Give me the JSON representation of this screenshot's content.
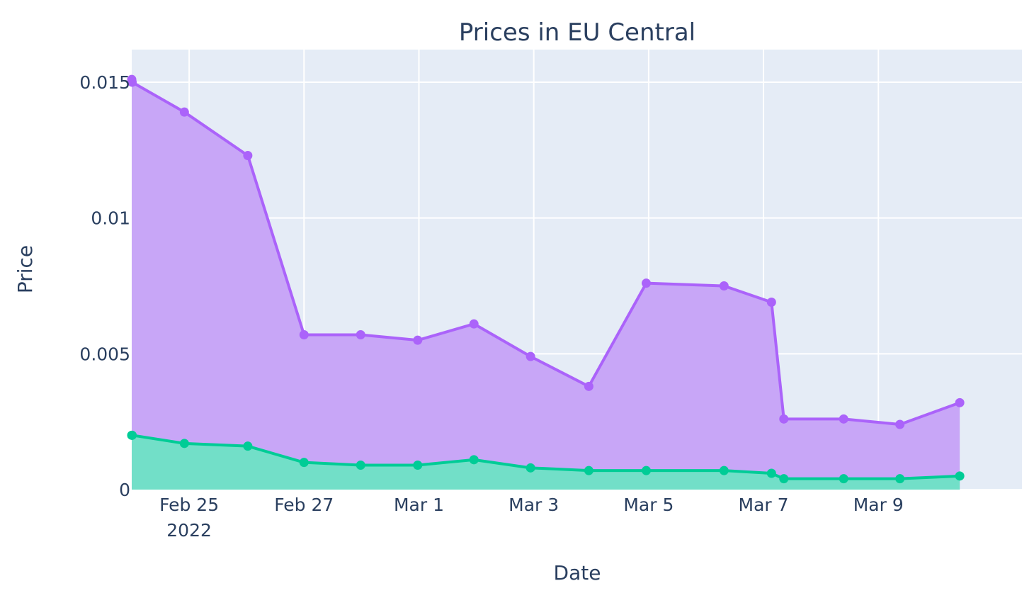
{
  "chart_data": {
    "type": "area",
    "title": "Prices in EU Central",
    "xlabel": "Date",
    "ylabel": "Price",
    "x_type": "date",
    "xlim": [
      "2022-02-24T00:00",
      "2022-03-11T12:00"
    ],
    "ylim": [
      0,
      0.0162
    ],
    "grid": true,
    "legend": "none",
    "x_ticks": [
      {
        "date": "2022-02-25",
        "label": "Feb 25",
        "sublabel": "2022"
      },
      {
        "date": "2022-02-27",
        "label": "Feb 27"
      },
      {
        "date": "2022-03-01",
        "label": "Mar 1"
      },
      {
        "date": "2022-03-03",
        "label": "Mar 3"
      },
      {
        "date": "2022-03-05",
        "label": "Mar 5"
      },
      {
        "date": "2022-03-07",
        "label": "Mar 7"
      },
      {
        "date": "2022-03-09",
        "label": "Mar 9"
      }
    ],
    "y_ticks": [
      {
        "value": 0,
        "label": "0"
      },
      {
        "value": 0.005,
        "label": "0.005"
      },
      {
        "value": 0.01,
        "label": "0.01"
      },
      {
        "value": 0.015,
        "label": "0.015"
      }
    ],
    "colors": {
      "background": "#e5ecf6",
      "grid": "#ffffff"
    },
    "series": [
      {
        "color": "#ab63fa",
        "fill": "#c8a6f7",
        "values": [
          0.0151,
          0.015,
          0.0139,
          0.0123,
          0.0057,
          0.0057,
          0.0055,
          0.0061,
          0.0049,
          0.0038,
          0.0076,
          0.0075,
          0.0069,
          0.0026,
          0.0026,
          0.0024,
          0.0032
        ]
      },
      {
        "color": "#00cc96",
        "fill": "#72dfc8",
        "values": [
          0.002,
          0.002,
          0.0017,
          0.0016,
          0.001,
          0.0009,
          0.0009,
          0.0011,
          0.0008,
          0.0007,
          0.0007,
          0.0007,
          0.0006,
          0.0004,
          0.0004,
          0.0004,
          0.0005
        ]
      }
    ],
    "x": [
      "2022-02-24T00:00",
      "2022-02-24T00:10",
      "2022-02-24T22:00",
      "2022-02-26T00:30",
      "2022-02-27T00:00",
      "2022-02-27T23:40",
      "2022-02-28T23:30",
      "2022-03-01T23:00",
      "2022-03-02T22:40",
      "2022-03-03T23:00",
      "2022-03-04T23:00",
      "2022-03-06T07:30",
      "2022-03-07T03:20",
      "2022-03-07T08:30",
      "2022-03-08T09:30",
      "2022-03-09T09:00",
      "2022-03-10T10:00"
    ]
  }
}
